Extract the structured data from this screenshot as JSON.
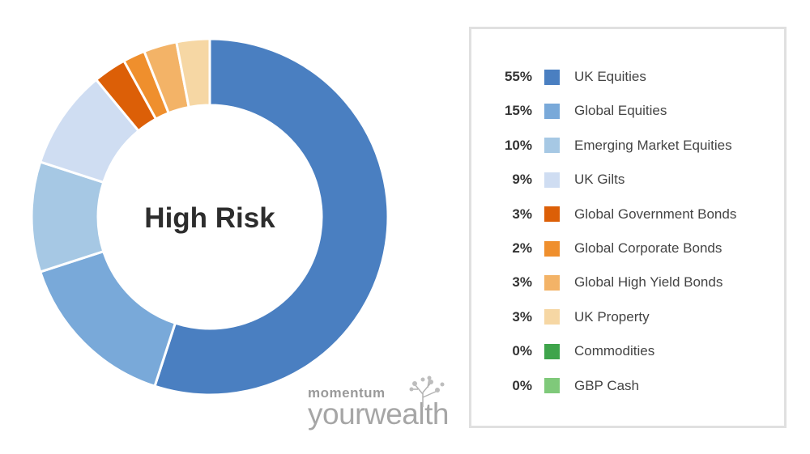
{
  "chart_data": {
    "type": "pie",
    "center_label": "High Risk",
    "slices": [
      {
        "name": "UK Equities",
        "value": 55,
        "label": "55%",
        "color": "#4a7fc1"
      },
      {
        "name": "Global Equities",
        "value": 15,
        "label": "15%",
        "color": "#79a9d9"
      },
      {
        "name": "Emerging Market Equities",
        "value": 10,
        "label": "10%",
        "color": "#a6c8e4"
      },
      {
        "name": "UK Gilts",
        "value": 9,
        "label": "9%",
        "color": "#cfddf2"
      },
      {
        "name": "Global Government Bonds",
        "value": 3,
        "label": "3%",
        "color": "#dc5f07"
      },
      {
        "name": "Global Corporate Bonds",
        "value": 2,
        "label": "2%",
        "color": "#ef8f2d"
      },
      {
        "name": "Global High Yield Bonds",
        "value": 3,
        "label": "3%",
        "color": "#f3b367"
      },
      {
        "name": "UK Property",
        "value": 3,
        "label": "3%",
        "color": "#f6d7a4"
      },
      {
        "name": "Commodities",
        "value": 0,
        "label": "0%",
        "color": "#3ea44b"
      },
      {
        "name": "GBP Cash",
        "value": 0,
        "label": "0%",
        "color": "#7fc97a"
      }
    ]
  },
  "logo": {
    "line1": "momentum",
    "line2": "yourwealth"
  }
}
